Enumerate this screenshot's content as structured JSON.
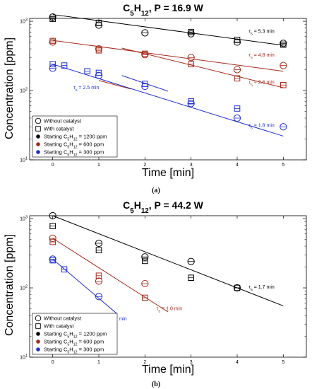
{
  "chart_data": [
    {
      "type": "scatter",
      "title": "C5H12, P = 16.9 W",
      "panel_label": "(a)",
      "xlabel": "Time [min]",
      "ylabel": "Concentration [ppm]",
      "xlim": [
        -0.5,
        5.5
      ],
      "ylim": [
        10,
        1100
      ],
      "y_scale": "log",
      "x_ticks": [
        "0",
        "1",
        "2",
        "3",
        "4",
        "5"
      ],
      "y_ticks": [
        {
          "value": 10,
          "base": "10",
          "exp": "1"
        },
        {
          "value": 100,
          "base": "10",
          "exp": "2"
        },
        {
          "value": 1000,
          "base": "10",
          "exp": "3"
        }
      ],
      "grid": false,
      "legend_position": "lower-left",
      "legend": [
        {
          "marker": "circle",
          "color": "#000000",
          "label": "Without catalyst"
        },
        {
          "marker": "square",
          "color": "#000000",
          "label": "With catalyst"
        },
        {
          "marker": "dot",
          "color": "#000000",
          "label": "Starting C5H12 = 1200 ppm"
        },
        {
          "marker": "dot",
          "color": "#a52a1a",
          "label": "Starting C5H12 = 600 ppm"
        },
        {
          "marker": "dot",
          "color": "#1f2fd0",
          "label": "Starting C5H12 = 300 ppm"
        }
      ],
      "series": [
        {
          "color": "#000000",
          "marker": "circle",
          "x": [
            0,
            1,
            2,
            3,
            4,
            5
          ],
          "y": [
            1150,
            880,
            680,
            660,
            500,
            480
          ]
        },
        {
          "color": "#000000",
          "marker": "square",
          "x": [
            0,
            1,
            3,
            4,
            5
          ],
          "y": [
            1080,
            950,
            700,
            540,
            460
          ]
        },
        {
          "color": "#a52a1a",
          "marker": "circle",
          "x": [
            0,
            1,
            2,
            3,
            4,
            5
          ],
          "y": [
            500,
            400,
            330,
            300,
            200,
            230
          ]
        },
        {
          "color": "#a52a1a",
          "marker": "square",
          "x": [
            0,
            1,
            2,
            3,
            4,
            5
          ],
          "y": [
            520,
            380,
            340,
            240,
            150,
            120
          ]
        },
        {
          "color": "#1f2fd0",
          "marker": "circle",
          "x": [
            0,
            1,
            2,
            3,
            4,
            5
          ],
          "y": [
            210,
            165,
            115,
            65,
            40,
            30
          ]
        },
        {
          "color": "#1f2fd0",
          "marker": "square",
          "x": [
            0,
            0.25,
            0.75,
            1,
            2,
            3,
            4
          ],
          "y": [
            240,
            230,
            190,
            180,
            125,
            70,
            55
          ]
        }
      ],
      "fit_lines": [
        {
          "color": "#000000",
          "x": [
            0,
            5
          ],
          "y": [
            1250,
            450
          ]
        },
        {
          "color": "#a52a1a",
          "x": [
            0,
            5
          ],
          "y": [
            530,
            190
          ]
        },
        {
          "color": "#a52a1a",
          "x": [
            1.5,
            5
          ],
          "y": [
            410,
            110
          ]
        },
        {
          "color": "#a52a1a",
          "x": [
            1.0,
            1.7
          ],
          "y": [
            140,
            105
          ],
          "dashed": false
        },
        {
          "color": "#1f2fd0",
          "x": [
            0,
            5
          ],
          "y": [
            240,
            22
          ]
        },
        {
          "color": "#1f2fd0",
          "x": [
            1.5,
            2.5
          ],
          "y": [
            165,
            98
          ]
        }
      ],
      "annotations": [
        {
          "x": 4.25,
          "y": 680,
          "color": "#000000",
          "text": "τ5 = 5.3 min"
        },
        {
          "x": 4.25,
          "y": 310,
          "color": "#a52a1a",
          "text": "τ5 = 4.8 min"
        },
        {
          "x": 4.25,
          "y": 125,
          "color": "#a52a1a",
          "text": "τ5 = 2.6 min"
        },
        {
          "x": 0.45,
          "y": 105,
          "color": "#1f2fd0",
          "text": "τ5 = 2.5 min"
        },
        {
          "x": 4.25,
          "y": 30,
          "color": "#1f2fd0",
          "text": "τ5 = 1.8 min"
        }
      ]
    },
    {
      "type": "scatter",
      "title": "C5H12, P = 44.2 W",
      "panel_label": "(b)",
      "xlabel": "Time [min]",
      "ylabel": "Concentration [ppm]",
      "xlim": [
        -0.5,
        5.5
      ],
      "ylim": [
        10,
        1100
      ],
      "y_scale": "log",
      "x_ticks": [
        "0",
        "1",
        "2",
        "3",
        "4",
        "5"
      ],
      "y_ticks": [
        {
          "value": 10,
          "base": "10",
          "exp": "1"
        },
        {
          "value": 100,
          "base": "10",
          "exp": "2"
        },
        {
          "value": 1000,
          "base": "10",
          "exp": "3"
        }
      ],
      "grid": false,
      "legend_position": "lower-left",
      "legend": [
        {
          "marker": "circle",
          "color": "#000000",
          "label": "Without catalyst"
        },
        {
          "marker": "square",
          "color": "#000000",
          "label": "With catalyst"
        },
        {
          "marker": "dot",
          "color": "#000000",
          "label": "Starting C5H12 = 1200 ppm"
        },
        {
          "marker": "dot",
          "color": "#a52a1a",
          "label": "Starting C5H12 = 600 ppm"
        },
        {
          "marker": "dot",
          "color": "#1f2fd0",
          "label": "Starting C5H12 = 300 ppm"
        }
      ],
      "series": [
        {
          "color": "#000000",
          "marker": "circle",
          "x": [
            0,
            1,
            2,
            3,
            4
          ],
          "y": [
            1100,
            440,
            280,
            240,
            100
          ]
        },
        {
          "color": "#000000",
          "marker": "square",
          "x": [
            0,
            1,
            2,
            3,
            4
          ],
          "y": [
            780,
            350,
            245,
            140,
            100
          ]
        },
        {
          "color": "#a52a1a",
          "marker": "circle",
          "x": [
            0,
            1,
            2
          ],
          "y": [
            520,
            125,
            115
          ]
        },
        {
          "color": "#a52a1a",
          "marker": "square",
          "x": [
            0,
            1,
            2
          ],
          "y": [
            460,
            150,
            72
          ]
        },
        {
          "color": "#1f2fd0",
          "marker": "circle",
          "x": [
            0,
            1
          ],
          "y": [
            260,
            75
          ]
        },
        {
          "color": "#1f2fd0",
          "marker": "square",
          "x": [
            0,
            0.25
          ],
          "y": [
            250,
            185
          ]
        }
      ],
      "fit_lines": [
        {
          "color": "#000000",
          "x": [
            0,
            5
          ],
          "y": [
            1100,
            55
          ]
        },
        {
          "color": "#a52a1a",
          "x": [
            0,
            2.5
          ],
          "y": [
            520,
            45
          ]
        },
        {
          "color": "#1f2fd0",
          "x": [
            0,
            1.4
          ],
          "y": [
            260,
            42
          ]
        }
      ],
      "annotations": [
        {
          "x": 4.25,
          "y": 98,
          "color": "#000000",
          "text": "τ5 = 1.7 min"
        },
        {
          "x": 2.25,
          "y": 48,
          "color": "#a52a1a",
          "text": "τ5 = 1.0 min"
        },
        {
          "x": 1.05,
          "y": 34,
          "color": "#1f2fd0",
          "text": "τ5 = 0.7 min"
        }
      ]
    }
  ]
}
